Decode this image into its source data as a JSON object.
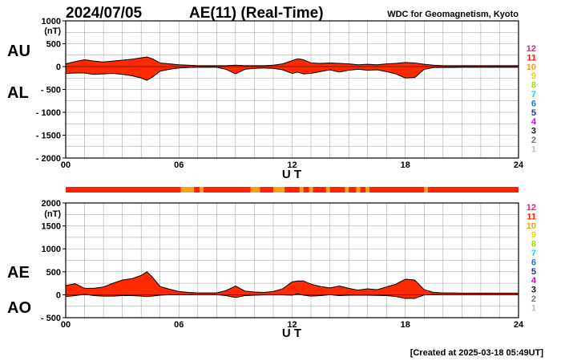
{
  "header": {
    "date": "2024/07/05",
    "title": "AE(11) (Real-Time)",
    "source": "WDC for Geomagnetism, Kyoto"
  },
  "footer": {
    "created": "[Created at 2025-03-18 05:49UT]"
  },
  "colors": {
    "fill": "#ff2a00",
    "station_11": "#ff2200",
    "station_10": "#f5a21a",
    "grid": "#999999"
  },
  "legend": [
    {
      "label": "12",
      "color": "#e6207f"
    },
    {
      "label": "11",
      "color": "#ff1a00"
    },
    {
      "label": "10",
      "color": "#f5a21a"
    },
    {
      "label": "9",
      "color": "#e8d800"
    },
    {
      "label": "8",
      "color": "#9ae000"
    },
    {
      "label": "7",
      "color": "#19d2e6"
    },
    {
      "label": "6",
      "color": "#1a6fe6"
    },
    {
      "label": "5",
      "color": "#2a2ab0"
    },
    {
      "label": "4",
      "color": "#c800d8"
    },
    {
      "label": "3",
      "color": "#111111"
    },
    {
      "label": "2",
      "color": "#777777"
    },
    {
      "label": "1",
      "color": "#c0c0c0"
    }
  ],
  "chart_data": [
    {
      "type": "area",
      "series": [
        {
          "name": "AU"
        },
        {
          "name": "AL"
        }
      ],
      "unit_label": "(nT)",
      "xlabel": "U T",
      "xlim": [
        0,
        24
      ],
      "ylim": [
        -2000,
        1000
      ],
      "yticks": [
        "1000",
        "500",
        "0",
        "- 500",
        "- 1000",
        "- 1500",
        "- 2000"
      ],
      "ytick_values": [
        1000,
        500,
        0,
        -500,
        -1000,
        -1500,
        -2000
      ],
      "xticks": [
        "00",
        "06",
        "12",
        "18",
        "24"
      ],
      "xtick_values": [
        0,
        6,
        12,
        18,
        24
      ],
      "x": [
        0,
        0.5,
        1,
        1.5,
        2,
        2.5,
        3,
        3.5,
        4,
        4.3,
        4.6,
        5,
        5.5,
        6,
        6.5,
        7,
        7.5,
        8,
        8.5,
        9,
        9.5,
        10,
        10.5,
        11,
        11.5,
        12,
        12.3,
        12.6,
        13,
        13.5,
        14,
        14.5,
        15,
        15.5,
        16,
        16.5,
        17,
        17.5,
        18,
        18.5,
        19,
        19.5,
        20,
        20.5,
        21,
        21.5,
        22,
        22.5,
        23,
        23.5,
        24
      ],
      "au": [
        60,
        110,
        150,
        120,
        100,
        120,
        140,
        160,
        190,
        210,
        170,
        80,
        60,
        40,
        30,
        20,
        20,
        20,
        20,
        30,
        20,
        20,
        20,
        30,
        60,
        130,
        170,
        150,
        80,
        70,
        80,
        70,
        60,
        40,
        50,
        40,
        60,
        70,
        90,
        80,
        50,
        30,
        20,
        20,
        20,
        20,
        20,
        20,
        20,
        20,
        20
      ],
      "al": [
        -150,
        -140,
        -140,
        -170,
        -160,
        -150,
        -170,
        -200,
        -250,
        -300,
        -230,
        -100,
        -60,
        -30,
        -20,
        -15,
        -15,
        -15,
        -60,
        -160,
        -60,
        -40,
        -30,
        -40,
        -70,
        -150,
        -120,
        -160,
        -150,
        -110,
        -70,
        -120,
        -80,
        -60,
        -80,
        -70,
        -110,
        -160,
        -250,
        -240,
        -60,
        -20,
        -20,
        -20,
        -15,
        -15,
        -15,
        -15,
        -15,
        -15,
        -15
      ]
    },
    {
      "type": "area",
      "series": [
        {
          "name": "AE"
        },
        {
          "name": "AO"
        }
      ],
      "unit_label": "(nT)",
      "xlabel": "U T",
      "xlim": [
        0,
        24
      ],
      "ylim": [
        -500,
        2000
      ],
      "yticks": [
        "2000",
        "1500",
        "1000",
        "500",
        "0",
        "- 500"
      ],
      "ytick_values": [
        2000,
        1500,
        1000,
        500,
        0,
        -500
      ],
      "xticks": [
        "00",
        "06",
        "12",
        "18",
        "24"
      ],
      "xtick_values": [
        0,
        6,
        12,
        18,
        24
      ],
      "x": [
        0,
        0.5,
        1,
        1.5,
        2,
        2.5,
        3,
        3.5,
        4,
        4.3,
        4.6,
        5,
        5.5,
        6,
        6.5,
        7,
        7.5,
        8,
        8.5,
        9,
        9.5,
        10,
        10.5,
        11,
        11.5,
        12,
        12.3,
        12.6,
        13,
        13.5,
        14,
        14.5,
        15,
        15.5,
        16,
        16.5,
        17,
        17.5,
        18,
        18.5,
        19,
        19.5,
        20,
        20.5,
        21,
        21.5,
        22,
        22.5,
        23,
        23.5,
        24
      ],
      "ae": [
        200,
        240,
        140,
        140,
        170,
        250,
        320,
        350,
        420,
        500,
        380,
        180,
        120,
        70,
        50,
        40,
        40,
        40,
        90,
        190,
        80,
        60,
        50,
        70,
        130,
        280,
        300,
        300,
        230,
        180,
        150,
        190,
        140,
        100,
        130,
        110,
        170,
        230,
        340,
        320,
        110,
        50,
        40,
        40,
        35,
        35,
        35,
        35,
        35,
        35,
        35
      ],
      "ao": [
        -40,
        -20,
        10,
        -20,
        -30,
        -30,
        -20,
        -20,
        -30,
        -40,
        -30,
        -10,
        0,
        0,
        0,
        0,
        0,
        0,
        -20,
        -60,
        -20,
        -10,
        -5,
        -5,
        -5,
        -10,
        20,
        -10,
        -30,
        -20,
        0,
        -20,
        -10,
        -10,
        -10,
        -15,
        -20,
        -40,
        -80,
        -80,
        -5,
        5,
        0,
        0,
        0,
        0,
        0,
        0,
        0,
        0,
        0
      ]
    }
  ],
  "station_bar": {
    "segments": [
      {
        "from": 0,
        "to": 6.1,
        "n": "11"
      },
      {
        "from": 6.1,
        "to": 6.8,
        "n": "10"
      },
      {
        "from": 6.8,
        "to": 7.1,
        "n": "11"
      },
      {
        "from": 7.1,
        "to": 7.3,
        "n": "10"
      },
      {
        "from": 7.3,
        "to": 9.8,
        "n": "11"
      },
      {
        "from": 9.8,
        "to": 10.3,
        "n": "10"
      },
      {
        "from": 10.3,
        "to": 11.0,
        "n": "11"
      },
      {
        "from": 11.0,
        "to": 11.6,
        "n": "10"
      },
      {
        "from": 11.6,
        "to": 12.4,
        "n": "11"
      },
      {
        "from": 12.4,
        "to": 12.6,
        "n": "10"
      },
      {
        "from": 12.6,
        "to": 12.9,
        "n": "11"
      },
      {
        "from": 12.9,
        "to": 13.1,
        "n": "10"
      },
      {
        "from": 13.1,
        "to": 13.8,
        "n": "11"
      },
      {
        "from": 13.8,
        "to": 14.0,
        "n": "10"
      },
      {
        "from": 14.0,
        "to": 14.8,
        "n": "11"
      },
      {
        "from": 14.8,
        "to": 15.0,
        "n": "10"
      },
      {
        "from": 15.0,
        "to": 15.4,
        "n": "11"
      },
      {
        "from": 15.4,
        "to": 15.6,
        "n": "10"
      },
      {
        "from": 15.6,
        "to": 15.9,
        "n": "11"
      },
      {
        "from": 15.9,
        "to": 16.1,
        "n": "10"
      },
      {
        "from": 16.1,
        "to": 19.0,
        "n": "11"
      },
      {
        "from": 19.0,
        "to": 19.2,
        "n": "10"
      },
      {
        "from": 19.2,
        "to": 24,
        "n": "11"
      }
    ]
  }
}
